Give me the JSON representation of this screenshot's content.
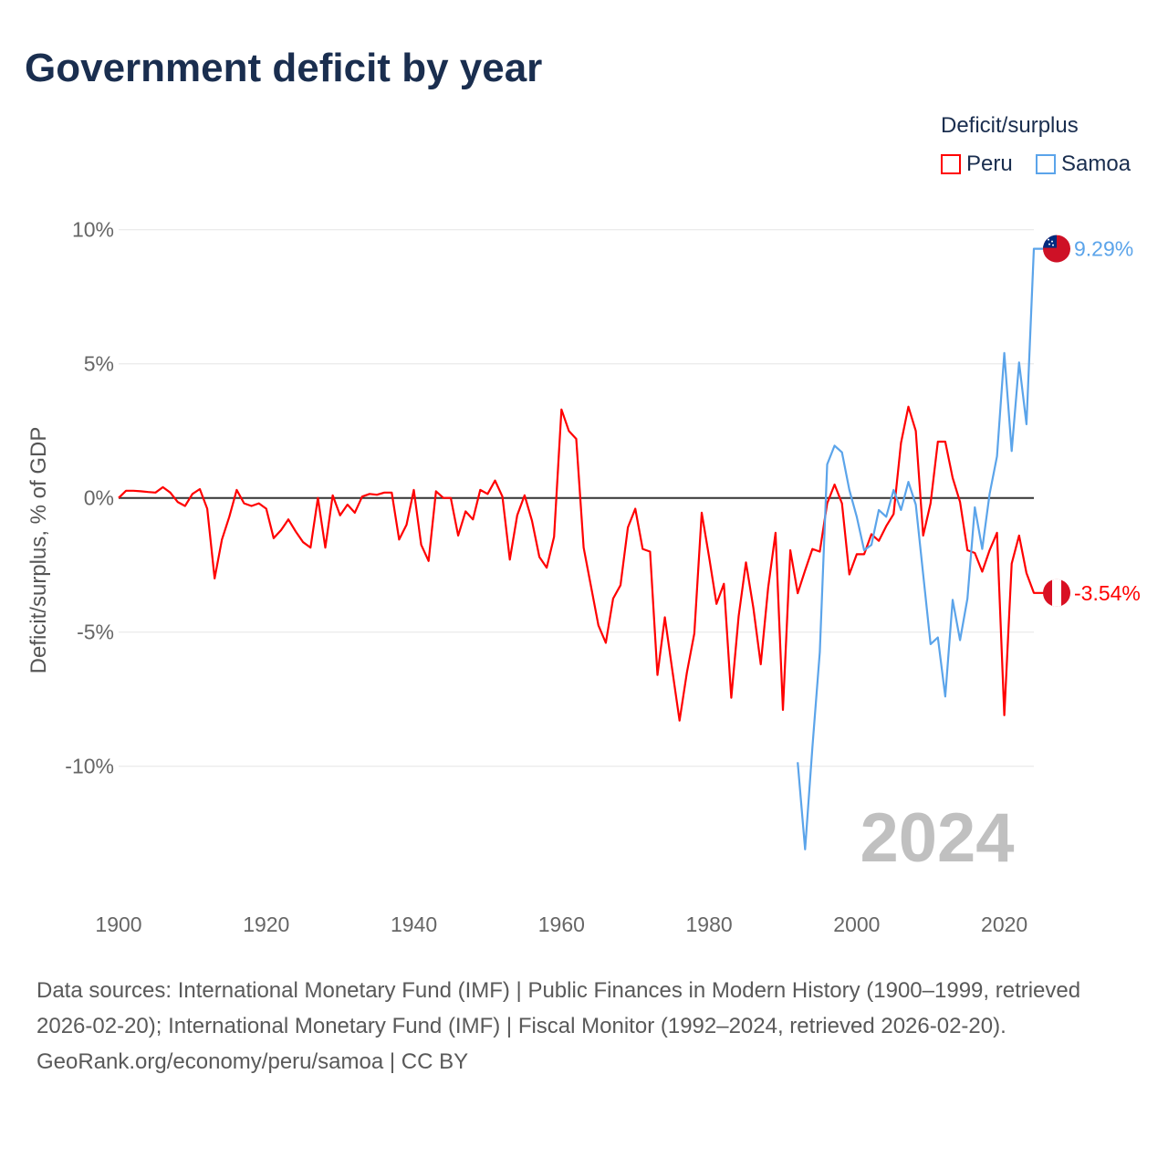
{
  "title": "Government deficit by year",
  "legend": {
    "title": "Deficit/surplus",
    "placement": "top-right"
  },
  "footer": {
    "sources": "Data sources: International Monetary Fund (IMF) | Public Finances in Modern History (1900–1999, retrieved 2026-02-20); International Monetary Fund (IMF) | Fiscal Monitor (1992–2024, retrieved 2026-02-20).",
    "credit": "GeoRank.org/economy/peru/samoa | CC BY"
  },
  "chart_data": {
    "type": "line",
    "title": "Government deficit by year",
    "xlabel": "",
    "ylabel": "Deficit/surplus, % of GDP",
    "xlim": [
      1900,
      2024
    ],
    "ylim": [
      -14.5,
      10.5
    ],
    "x_ticks": [
      1900,
      1920,
      1940,
      1960,
      1980,
      2000,
      2020
    ],
    "x_tick_labels": [
      "1900",
      "1920",
      "1940",
      "1960",
      "1980",
      "2000",
      "2020"
    ],
    "y_ticks": [
      10,
      5,
      0,
      -5,
      -10
    ],
    "y_tick_labels": [
      "10%",
      "5%",
      "0%",
      "-5%",
      "-10%"
    ],
    "grid": true,
    "year_watermark": "2024",
    "series": [
      {
        "name": "Peru",
        "color": "#ff0000",
        "end_label": "-3.54%",
        "flag": "peru",
        "start_year": 1900,
        "values": [
          0,
          0.27,
          0.27,
          0.25,
          0.22,
          0.2,
          0.4,
          0.2,
          -0.15,
          -0.3,
          0.15,
          0.33,
          -0.4,
          -3.0,
          -1.55,
          -0.7,
          0.3,
          -0.2,
          -0.3,
          -0.2,
          -0.4,
          -1.5,
          -1.2,
          -0.8,
          -1.25,
          -1.65,
          -1.85,
          0,
          -1.85,
          0.1,
          -0.65,
          -0.25,
          -0.55,
          0.05,
          0.15,
          0.12,
          0.2,
          0.2,
          -1.55,
          -1.0,
          0.3,
          -1.75,
          -2.35,
          0.25,
          0.0,
          0,
          -1.4,
          -0.5,
          -0.8,
          0.3,
          0.15,
          0.65,
          0.05,
          -2.3,
          -0.65,
          0.1,
          -0.85,
          -2.2,
          -2.6,
          -1.45,
          3.3,
          2.5,
          2.2,
          -1.85,
          -3.3,
          -4.75,
          -5.4,
          -3.75,
          -3.25,
          -1.1,
          -0.4,
          -1.9,
          -2.0,
          -6.6,
          -4.45,
          -6.4,
          -8.3,
          -6.5,
          -5.05,
          -0.55,
          -2.2,
          -3.95,
          -3.2,
          -7.45,
          -4.4,
          -2.4,
          -4.1,
          -6.2,
          -3.35,
          -1.3,
          -7.9,
          -1.95,
          -3.55,
          -2.7,
          -1.9,
          -2.0,
          -0.2,
          0.5,
          -0.2,
          -2.85,
          -2.1,
          -2.1,
          -1.35,
          -1.6,
          -1.05,
          -0.6,
          2.05,
          3.4,
          2.5,
          -1.4,
          -0.2,
          2.1,
          2.1,
          0.75,
          -0.15,
          -1.95,
          -2.05,
          -2.75,
          -1.95,
          -1.3,
          -8.1,
          -2.45,
          -1.4,
          -2.8,
          -3.54
        ]
      },
      {
        "name": "Samoa",
        "color": "#5ba4ea",
        "end_label": "9.29%",
        "flag": "samoa",
        "start_year": 1992,
        "values": [
          -9.85,
          -13.1,
          -9.3,
          -5.75,
          1.25,
          1.95,
          1.7,
          0.3,
          -0.7,
          -1.95,
          -1.75,
          -0.45,
          -0.7,
          0.3,
          -0.45,
          0.6,
          -0.25,
          -2.85,
          -5.45,
          -5.2,
          -7.4,
          -3.8,
          -5.3,
          -3.75,
          -0.35,
          -1.9,
          0.15,
          1.55,
          5.4,
          1.75,
          5.05,
          2.75,
          9.29
        ]
      }
    ]
  }
}
